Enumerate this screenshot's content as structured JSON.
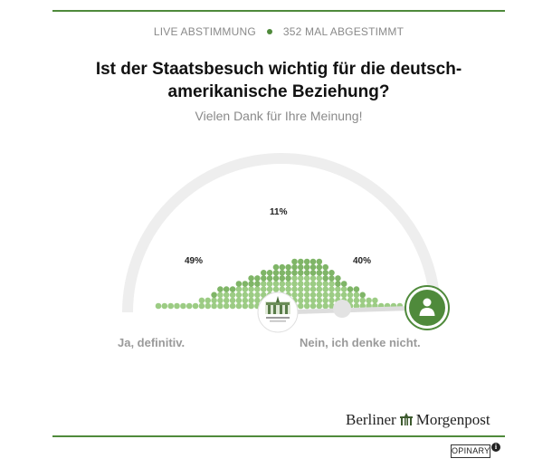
{
  "header": {
    "live_label": "LIVE ABSTIMMUNG",
    "vote_count_label": "352 MAL ABGESTIMMT"
  },
  "poll": {
    "question": "Ist der Staatsbesuch wichtig für die deutsch-amerikanische Beziehung?",
    "thanks": "Vielen Dank für Ihre Meinung!",
    "answer_left": "Ja, definitiv.",
    "answer_right": "Nein, ich denke nicht.",
    "results": [
      {
        "label": "49%",
        "value": 49
      },
      {
        "label": "11%",
        "value": 11
      },
      {
        "label": "40%",
        "value": 40
      }
    ],
    "user_selection_fraction": 0.78
  },
  "colors": {
    "accent": "#4f8a3b",
    "dot_light": "#9ccc84",
    "dot_mid": "#7fb567",
    "dot_dark": "#5a9a45",
    "arc": "#eeeeee"
  },
  "icons": {
    "user_marker": "user-icon",
    "publisher_thumb": "brandenburg-gate-thumbnail",
    "info": "info-icon"
  },
  "footer": {
    "brand_left": "Berliner",
    "brand_right": "Morgenpost",
    "opinary": "OPINARY",
    "info_glyph": "i"
  }
}
